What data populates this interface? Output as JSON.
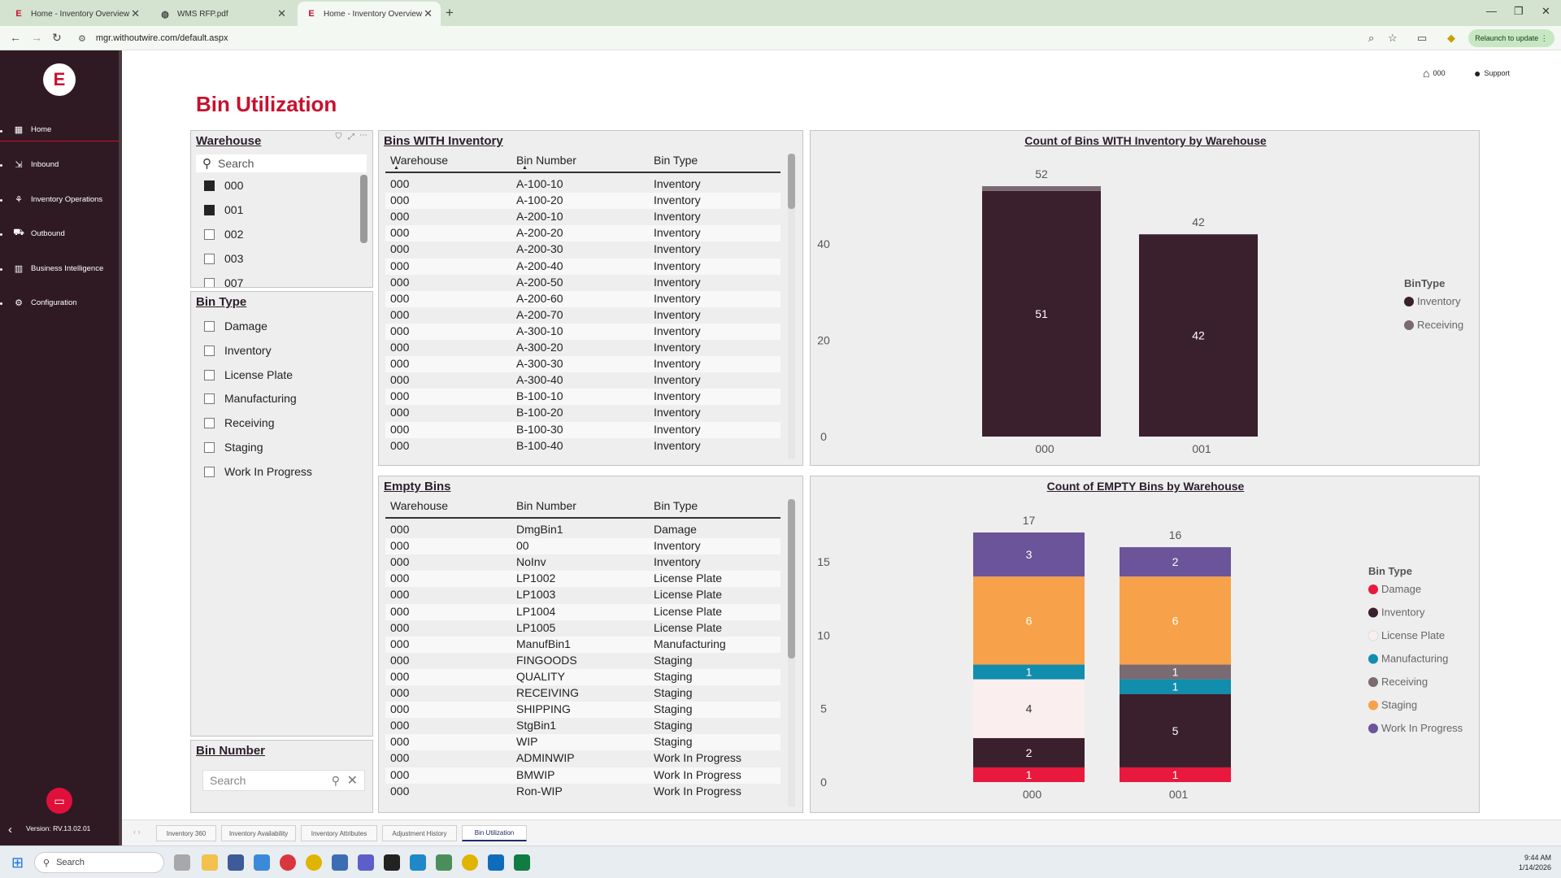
{
  "browser": {
    "tabs": [
      {
        "title": "Home - Inventory Overview",
        "active": false
      },
      {
        "title": "WMS RFP.pdf",
        "active": false
      },
      {
        "title": "Home - Inventory Overview",
        "active": true
      }
    ],
    "url": "mgr.withoutwire.com/default.aspx",
    "relaunch": "Relaunch to update"
  },
  "sidebar": {
    "items": [
      {
        "label": "Home",
        "icon": "grid-icon"
      },
      {
        "label": "Inbound",
        "icon": "inbound-icon"
      },
      {
        "label": "Inventory Operations",
        "icon": "operations-icon"
      },
      {
        "label": "Outbound",
        "icon": "truck-icon"
      },
      {
        "label": "Business Intelligence",
        "icon": "chart-icon"
      },
      {
        "label": "Configuration",
        "icon": "gear-icon"
      }
    ],
    "version": "Version: RV.13.02.01"
  },
  "header": {
    "warehouse": "000",
    "support": "Support"
  },
  "page_title": "Bin Utilization",
  "warehouse_slicer": {
    "title": "Warehouse",
    "search_placeholder": "Search",
    "items": [
      {
        "label": "000",
        "checked": true
      },
      {
        "label": "001",
        "checked": true
      },
      {
        "label": "002",
        "checked": false
      },
      {
        "label": "003",
        "checked": false
      },
      {
        "label": "007",
        "checked": false
      }
    ]
  },
  "bintype_slicer": {
    "title": "Bin Type",
    "items": [
      "Damage",
      "Inventory",
      "License Plate",
      "Manufacturing",
      "Receiving",
      "Staging",
      "Work In Progress"
    ]
  },
  "binnumber_slicer": {
    "title": "Bin Number",
    "search_placeholder": "Search"
  },
  "bins_with_inventory": {
    "title": "Bins WITH Inventory",
    "columns": [
      "Warehouse",
      "Bin Number",
      "Bin Type"
    ],
    "rows": [
      [
        "000",
        "A-100-10",
        "Inventory"
      ],
      [
        "000",
        "A-100-20",
        "Inventory"
      ],
      [
        "000",
        "A-200-10",
        "Inventory"
      ],
      [
        "000",
        "A-200-20",
        "Inventory"
      ],
      [
        "000",
        "A-200-30",
        "Inventory"
      ],
      [
        "000",
        "A-200-40",
        "Inventory"
      ],
      [
        "000",
        "A-200-50",
        "Inventory"
      ],
      [
        "000",
        "A-200-60",
        "Inventory"
      ],
      [
        "000",
        "A-200-70",
        "Inventory"
      ],
      [
        "000",
        "A-300-10",
        "Inventory"
      ],
      [
        "000",
        "A-300-20",
        "Inventory"
      ],
      [
        "000",
        "A-300-30",
        "Inventory"
      ],
      [
        "000",
        "A-300-40",
        "Inventory"
      ],
      [
        "000",
        "B-100-10",
        "Inventory"
      ],
      [
        "000",
        "B-100-20",
        "Inventory"
      ],
      [
        "000",
        "B-100-30",
        "Inventory"
      ],
      [
        "000",
        "B-100-40",
        "Inventory"
      ]
    ]
  },
  "empty_bins": {
    "title": "Empty Bins",
    "columns": [
      "Warehouse",
      "Bin Number",
      "Bin Type"
    ],
    "rows": [
      [
        "000",
        "DmgBin1",
        "Damage"
      ],
      [
        "000",
        "00",
        "Inventory"
      ],
      [
        "000",
        "NoInv",
        "Inventory"
      ],
      [
        "000",
        "LP1002",
        "License Plate"
      ],
      [
        "000",
        "LP1003",
        "License Plate"
      ],
      [
        "000",
        "LP1004",
        "License Plate"
      ],
      [
        "000",
        "LP1005",
        "License Plate"
      ],
      [
        "000",
        "ManufBin1",
        "Manufacturing"
      ],
      [
        "000",
        "FINGOODS",
        "Staging"
      ],
      [
        "000",
        "QUALITY",
        "Staging"
      ],
      [
        "000",
        "RECEIVING",
        "Staging"
      ],
      [
        "000",
        "SHIPPING",
        "Staging"
      ],
      [
        "000",
        "StgBin1",
        "Staging"
      ],
      [
        "000",
        "WIP",
        "Staging"
      ],
      [
        "000",
        "ADMINWIP",
        "Work In Progress"
      ],
      [
        "000",
        "BMWIP",
        "Work In Progress"
      ],
      [
        "000",
        "Ron-WIP",
        "Work In Progress"
      ]
    ]
  },
  "page_tabs": [
    "Inventory 360",
    "Inventory Availability",
    "Inventory Attributes",
    "Adjustment History",
    "Bin Utilization"
  ],
  "taskbar": {
    "search": "Search",
    "time": "9:44 AM",
    "date": "1/14/2026"
  },
  "chart_data": [
    {
      "type": "bar",
      "stacked": true,
      "title": "Count of Bins WITH Inventory by Warehouse",
      "categories": [
        "000",
        "001"
      ],
      "series": [
        {
          "name": "Inventory",
          "values": [
            51,
            42
          ],
          "color": "#3a1f2d"
        },
        {
          "name": "Receiving",
          "values": [
            1,
            0
          ],
          "color": "#7a6a72"
        }
      ],
      "totals": [
        52,
        42
      ],
      "ylim": [
        0,
        52
      ],
      "yticks": [
        0,
        20,
        40
      ],
      "legend_title": "BinType",
      "legend_position": "right"
    },
    {
      "type": "bar",
      "stacked": true,
      "title": "Count of EMPTY Bins by Warehouse",
      "categories": [
        "000",
        "001"
      ],
      "series": [
        {
          "name": "Damage",
          "values": [
            1,
            1
          ],
          "color": "#e8193c"
        },
        {
          "name": "Inventory",
          "values": [
            2,
            5
          ],
          "color": "#3a1f2d"
        },
        {
          "name": "License Plate",
          "values": [
            4,
            0
          ],
          "color": "#fbeeee"
        },
        {
          "name": "Manufacturing",
          "values": [
            1,
            1
          ],
          "color": "#118dad"
        },
        {
          "name": "Receiving",
          "values": [
            0,
            1
          ],
          "color": "#7a6a72"
        },
        {
          "name": "Staging",
          "values": [
            6,
            6
          ],
          "color": "#f7a24b"
        },
        {
          "name": "Work In Progress",
          "values": [
            3,
            2
          ],
          "color": "#6b5499"
        }
      ],
      "totals": [
        17,
        16
      ],
      "ylim": [
        0,
        17
      ],
      "yticks": [
        0,
        5,
        10,
        15
      ],
      "legend_title": "Bin Type",
      "legend_position": "right"
    }
  ]
}
